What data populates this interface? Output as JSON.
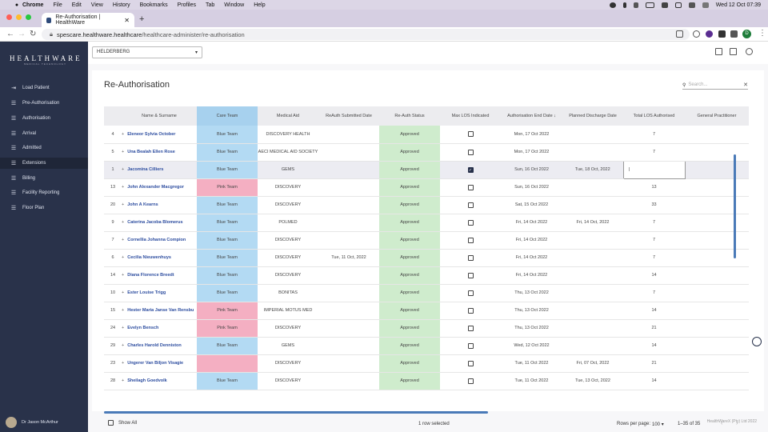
{
  "menubar": {
    "app": "Chrome",
    "items": [
      "File",
      "Edit",
      "View",
      "History",
      "Bookmarks",
      "Profiles",
      "Tab",
      "Window",
      "Help"
    ],
    "clock": "Wed 12 Oct  07:39"
  },
  "browser": {
    "tab_title": "Re-Authorisation | HealthWare",
    "url_host": "spescare.healthware.healthcare",
    "url_path": "/healthcare-administer/re-authorisation",
    "profile_initial": "D"
  },
  "sidebar": {
    "logo": "HEALTHWARE",
    "logo_sub": "MEDICAL TECHNOLOGY",
    "items": [
      {
        "label": "Load Patient",
        "icon": "load-patient-icon"
      },
      {
        "label": "Pre-Authorisation",
        "icon": "list-icon"
      },
      {
        "label": "Authorisation",
        "icon": "list-icon"
      },
      {
        "label": "Arrival",
        "icon": "list-icon"
      },
      {
        "label": "Admitted",
        "icon": "list-icon"
      },
      {
        "label": "Extensions",
        "icon": "list-icon"
      },
      {
        "label": "Billing",
        "icon": "list-icon"
      },
      {
        "label": "Facility Reporting",
        "icon": "list-icon"
      },
      {
        "label": "Floor Plan",
        "icon": "list-icon"
      }
    ],
    "active_index": 5,
    "user_name": "Dr Jason McArthur"
  },
  "topbar": {
    "practice_value": "HELDERBERG"
  },
  "page": {
    "title": "Re-Authorisation",
    "search_placeholder": "Search..."
  },
  "table": {
    "headers": [
      "",
      "Name & Surname",
      "Care Team",
      "Medical Aid",
      "ReAuth Submitted Date",
      "Re-Auth Status",
      "Max LOS Indicated",
      "Authorisation End Date",
      "Planned Discharge Date",
      "Total LOS Authorised",
      "General Practitioner"
    ],
    "sort_indicator": "↓",
    "rows": [
      {
        "no": "4",
        "name": "Eleneor Sylvia October",
        "team": "Blue Team",
        "team_color": "blue",
        "aid": "DISCOVERY HEALTH",
        "submitted": "",
        "status": "Approved",
        "maxlos": false,
        "end": "Mon, 17 Oct 2022",
        "discharge": "",
        "los": "7"
      },
      {
        "no": "5",
        "name": "Una Bealah Ellen Rose",
        "team": "Blue Team",
        "team_color": "blue",
        "aid": "AECI MEDICAL AID SOCIETY",
        "submitted": "",
        "status": "Approved",
        "maxlos": false,
        "end": "Mon, 17 Oct 2022",
        "discharge": "",
        "los": "7"
      },
      {
        "no": "1",
        "name": "Jacomina Cilliers",
        "team": "Blue Team",
        "team_color": "blue",
        "aid": "GEMS",
        "submitted": "",
        "status": "Approved",
        "maxlos": true,
        "end": "Sun, 16 Oct 2022",
        "discharge": "Tue, 18 Oct, 2022",
        "los": "",
        "selected": true
      },
      {
        "no": "13",
        "name": "John Alexander Macgregor",
        "team": "Pink Team",
        "team_color": "pink",
        "aid": "DISCOVERY",
        "submitted": "",
        "status": "Approved",
        "maxlos": false,
        "end": "Sun, 16 Oct 2022",
        "discharge": "",
        "los": "13"
      },
      {
        "no": "20",
        "name": "John A Kearns",
        "team": "Blue Team",
        "team_color": "blue",
        "aid": "DISCOVERY",
        "submitted": "",
        "status": "Approved",
        "maxlos": false,
        "end": "Sat, 15 Oct 2022",
        "discharge": "",
        "los": "33"
      },
      {
        "no": "9",
        "name": "Caterina Jacoba Blomerus",
        "team": "Blue Team",
        "team_color": "blue",
        "aid": "POLMED",
        "submitted": "",
        "status": "Approved",
        "maxlos": false,
        "end": "Fri, 14 Oct 2022",
        "discharge": "Fri, 14 Oct, 2022",
        "los": "7"
      },
      {
        "no": "7",
        "name": "Cornellia Johanna Compion",
        "team": "Blue Team",
        "team_color": "blue",
        "aid": "DISCOVERY",
        "submitted": "",
        "status": "Approved",
        "maxlos": false,
        "end": "Fri, 14 Oct 2022",
        "discharge": "",
        "los": "7"
      },
      {
        "no": "6",
        "name": "Cecilia Nieuwenhuys",
        "team": "Blue Team",
        "team_color": "blue",
        "aid": "DISCOVERY",
        "submitted": "Tue, 11 Oct, 2022",
        "status": "Approved",
        "maxlos": false,
        "end": "Fri, 14 Oct 2022",
        "discharge": "",
        "los": "7"
      },
      {
        "no": "14",
        "name": "Diana Florence Breedt",
        "team": "Blue Team",
        "team_color": "blue",
        "aid": "DISCOVERY",
        "submitted": "",
        "status": "Approved",
        "maxlos": false,
        "end": "Fri, 14 Oct 2022",
        "discharge": "",
        "los": "14"
      },
      {
        "no": "10",
        "name": "Ester Louise Trigg",
        "team": "Blue Team",
        "team_color": "blue",
        "aid": "BONITAS",
        "submitted": "",
        "status": "Approved",
        "maxlos": false,
        "end": "Thu, 13 Oct 2022",
        "discharge": "",
        "los": "7"
      },
      {
        "no": "15",
        "name": "Hester Maria Janse Van Rensbu",
        "team": "Pink Team",
        "team_color": "pink",
        "aid": "IMPERIAL MOTUS MED",
        "submitted": "",
        "status": "Approved",
        "maxlos": false,
        "end": "Thu, 13 Oct 2022",
        "discharge": "",
        "los": "14"
      },
      {
        "no": "24",
        "name": "Evelyn Bensch",
        "team": "Pink Team",
        "team_color": "pink",
        "aid": "DISCOVERY",
        "submitted": "",
        "status": "Approved",
        "maxlos": false,
        "end": "Thu, 13 Oct 2022",
        "discharge": "",
        "los": "21"
      },
      {
        "no": "29",
        "name": "Charles Harold Denniston",
        "team": "Blue Team",
        "team_color": "blue",
        "aid": "GEMS",
        "submitted": "",
        "status": "Approved",
        "maxlos": false,
        "end": "Wed, 12 Oct 2022",
        "discharge": "",
        "los": "14"
      },
      {
        "no": "23",
        "name": "Ungerer Van Biljon Visagie",
        "team": "",
        "team_color": "pink",
        "aid": "DISCOVERY",
        "submitted": "",
        "status": "Approved",
        "maxlos": false,
        "end": "Tue, 11 Oct 2022",
        "discharge": "Fri, 07 Oct, 2022",
        "los": "21"
      },
      {
        "no": "28",
        "name": "Sheilagh Goedvolk",
        "team": "Blue Team",
        "team_color": "blue",
        "aid": "DISCOVERY",
        "submitted": "",
        "status": "Approved",
        "maxlos": false,
        "end": "Tue, 11 Oct 2022",
        "discharge": "Tue, 13 Oct, 2022",
        "los": "14"
      }
    ]
  },
  "footer": {
    "show_all": "Show All",
    "selected_text": "1 row selected",
    "rows_per_page_label": "Rows per page:",
    "rows_per_page_value": "100",
    "range": "1–35 of 35",
    "copyright": "HealthWareX (Pty) Ltd 2022"
  },
  "colors": {
    "sidebar": "#29324a",
    "care_blue": "#b3daf3",
    "care_pink": "#f4afc2",
    "status_green": "#cfeccd",
    "link_blue": "#2e4ea0",
    "scroll": "#4a7ab8"
  }
}
